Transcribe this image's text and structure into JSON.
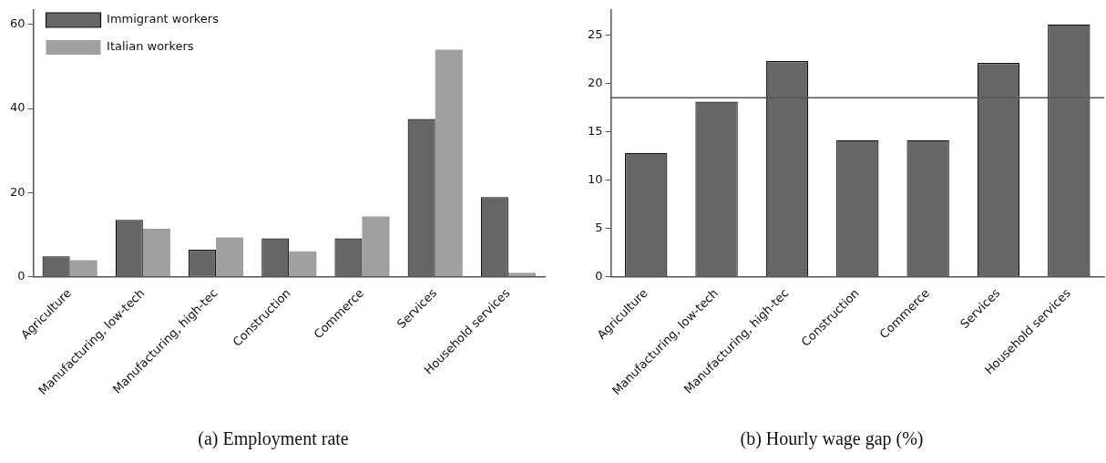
{
  "chart_data": [
    {
      "type": "bar",
      "title": "(a) Employment rate",
      "categories": [
        "Agriculture",
        "Manufacturing, low-tech",
        "Manufacturing, high-tec",
        "Construction",
        "Commerce",
        "Services",
        "Household services"
      ],
      "series": [
        {
          "name": "Immigrant workers",
          "color": "#666666",
          "values": [
            4.8,
            13.5,
            6.4,
            9.1,
            9.1,
            37.5,
            18.9
          ]
        },
        {
          "name": "Italian workers",
          "color": "#a0a0a0",
          "values": [
            3.9,
            11.4,
            9.3,
            6.0,
            14.3,
            54.0,
            0.9
          ]
        }
      ],
      "ylim": [
        0,
        63.5
      ],
      "yticks": [
        0,
        20,
        40,
        60
      ],
      "grid": false,
      "legend": "top left"
    },
    {
      "type": "bar",
      "title": "(b) Hourly wage gap (%)",
      "categories": [
        "Agriculture",
        "Manufacturing, low-tech",
        "Manufacturing, high-tec",
        "Construction",
        "Commerce",
        "Services",
        "Household services"
      ],
      "values": [
        12.8,
        18.1,
        22.3,
        14.1,
        14.1,
        22.1,
        26.1
      ],
      "color": "#666666",
      "ylim": [
        0,
        27.6
      ],
      "yticks": [
        0,
        5,
        10,
        15,
        20,
        25
      ],
      "grid": false,
      "ref_lines": [
        {
          "axis": "y",
          "value": 18.5,
          "color": "#555555"
        }
      ]
    }
  ]
}
